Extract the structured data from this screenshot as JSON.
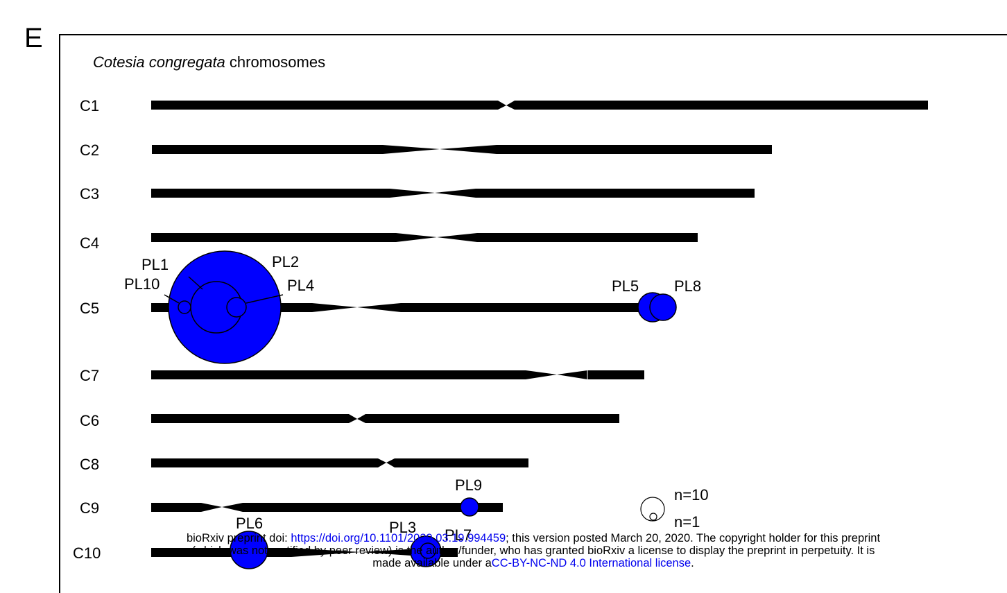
{
  "panel_letter": "E",
  "title": {
    "species": "Cotesia congregata",
    "rest": " chromosomes"
  },
  "colors": {
    "chromosome": "#000000",
    "locus_fill": "#0000ff",
    "locus_stroke": "#000000",
    "link": "#0000ee"
  },
  "chromosomes": [
    {
      "label": "C1"
    },
    {
      "label": "C2"
    },
    {
      "label": "C3"
    },
    {
      "label": "C4"
    },
    {
      "label": "C5"
    },
    {
      "label": "C7"
    },
    {
      "label": "C6"
    },
    {
      "label": "C8"
    },
    {
      "label": "C9"
    },
    {
      "label": "C10"
    }
  ],
  "loci": [
    {
      "label": "PL1",
      "chromosome": "C5",
      "genes": 10
    },
    {
      "label": "PL2",
      "chromosome": "C5",
      "genes": 98
    },
    {
      "label": "PL10",
      "chromosome": "C5",
      "genes": 1
    },
    {
      "label": "PL4",
      "chromosome": "C5",
      "genes": 3
    },
    {
      "label": "PL5",
      "chromosome": "C5",
      "genes": 3
    },
    {
      "label": "PL8",
      "chromosome": "C5",
      "genes": 3
    },
    {
      "label": "PL9",
      "chromosome": "C9",
      "genes": 2
    },
    {
      "label": "PL6",
      "chromosome": "C10",
      "genes": 6
    },
    {
      "label": "PL3",
      "chromosome": "C10",
      "genes": 4
    },
    {
      "label": "PL7",
      "chromosome": "C10",
      "genes": 1
    }
  ],
  "legend": {
    "large_label": "n=10",
    "small_label": "n=1"
  },
  "footer": {
    "line1_prefix": "bioRxiv preprint doi: ",
    "doi_link": "https://doi.org/10.1101/2020.03.19.994459",
    "line1_suffix": "; this version posted March 20, 2020. The copyright holder for this preprint",
    "line2": "(which was not certified by peer review) is the author/funder, who has granted bioRxiv a license to display the preprint in perpetuity. It is",
    "line3_prefix": "made available under a",
    "license_link": "CC-BY-NC-ND 4.0 International license",
    "line3_suffix": "."
  }
}
